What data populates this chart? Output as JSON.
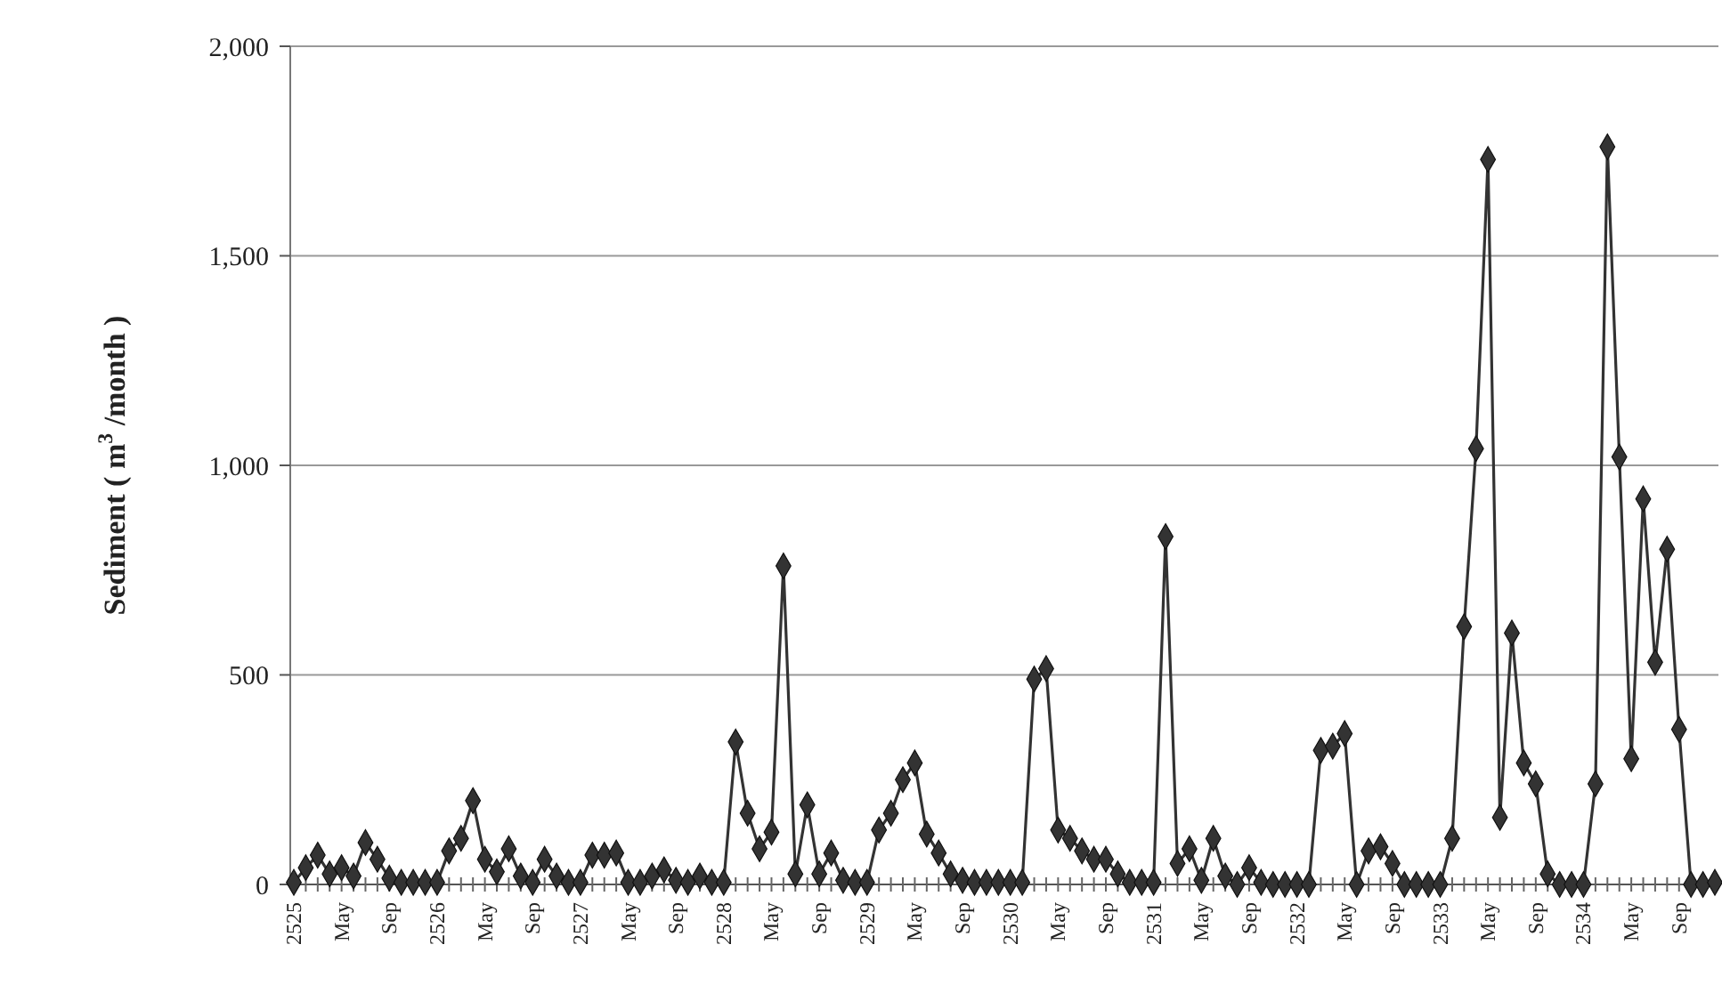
{
  "chart_data": {
    "type": "line",
    "ylabel": "Sediment ( m$^{3}$ /month )",
    "categories": [
      "2525",
      null,
      null,
      null,
      "May",
      null,
      null,
      null,
      "Sep",
      null,
      null,
      null,
      "2526",
      null,
      null,
      null,
      "May",
      null,
      null,
      null,
      "Sep",
      null,
      null,
      null,
      "2527",
      null,
      null,
      null,
      "May",
      null,
      null,
      null,
      "Sep",
      null,
      null,
      null,
      "2528",
      null,
      null,
      null,
      "May",
      null,
      null,
      null,
      "Sep",
      null,
      null,
      null,
      "2529",
      null,
      null,
      null,
      "May",
      null,
      null,
      null,
      "Sep",
      null,
      null,
      null,
      "2530",
      null,
      null,
      null,
      "May",
      null,
      null,
      null,
      "Sep",
      null,
      null,
      null,
      "2531",
      null,
      null,
      null,
      "May",
      null,
      null,
      null,
      "Sep",
      null,
      null,
      null,
      "2532",
      null,
      null,
      null,
      "May",
      null,
      null,
      null,
      "Sep",
      null,
      null,
      null,
      "2533",
      null,
      null,
      null,
      "May",
      null,
      null,
      null,
      "Sep",
      null,
      null,
      null,
      "2534",
      null,
      null,
      null,
      "May",
      null,
      null,
      null,
      "Sep",
      null,
      null,
      null
    ],
    "series": [
      {
        "color": "#333333",
        "values": [
          5,
          40,
          70,
          25,
          40,
          20,
          100,
          60,
          15,
          5,
          5,
          5,
          5,
          80,
          110,
          200,
          60,
          30,
          85,
          20,
          5,
          60,
          20,
          5,
          5,
          70,
          70,
          75,
          5,
          5,
          20,
          35,
          10,
          5,
          20,
          5,
          5,
          340,
          170,
          85,
          125,
          760,
          25,
          190,
          25,
          75,
          10,
          5,
          5,
          130,
          170,
          250,
          290,
          120,
          75,
          25,
          10,
          5,
          5,
          5,
          5,
          5,
          490,
          515,
          130,
          110,
          80,
          60,
          60,
          25,
          5,
          5,
          5,
          830,
          50,
          85,
          10,
          110,
          20,
          0,
          40,
          5,
          0,
          0,
          0,
          0,
          320,
          330,
          360,
          0,
          80,
          90,
          50,
          0,
          0,
          0,
          0,
          110,
          615,
          1040,
          1730,
          160,
          600,
          290,
          240,
          25,
          0,
          0,
          0,
          240,
          1760,
          1020,
          300,
          920,
          530,
          800,
          370,
          0,
          0,
          5
        ]
      }
    ],
    "ylim": [
      0,
      2000
    ],
    "yticks": [
      0,
      500,
      {
        "value": 1000,
        "label": "1,000"
      },
      {
        "value": 1500,
        "label": "1,500"
      },
      {
        "value": 2000,
        "label": "2,000"
      }
    ],
    "grid": "y",
    "marker": "diamond",
    "line_style": "solid"
  }
}
